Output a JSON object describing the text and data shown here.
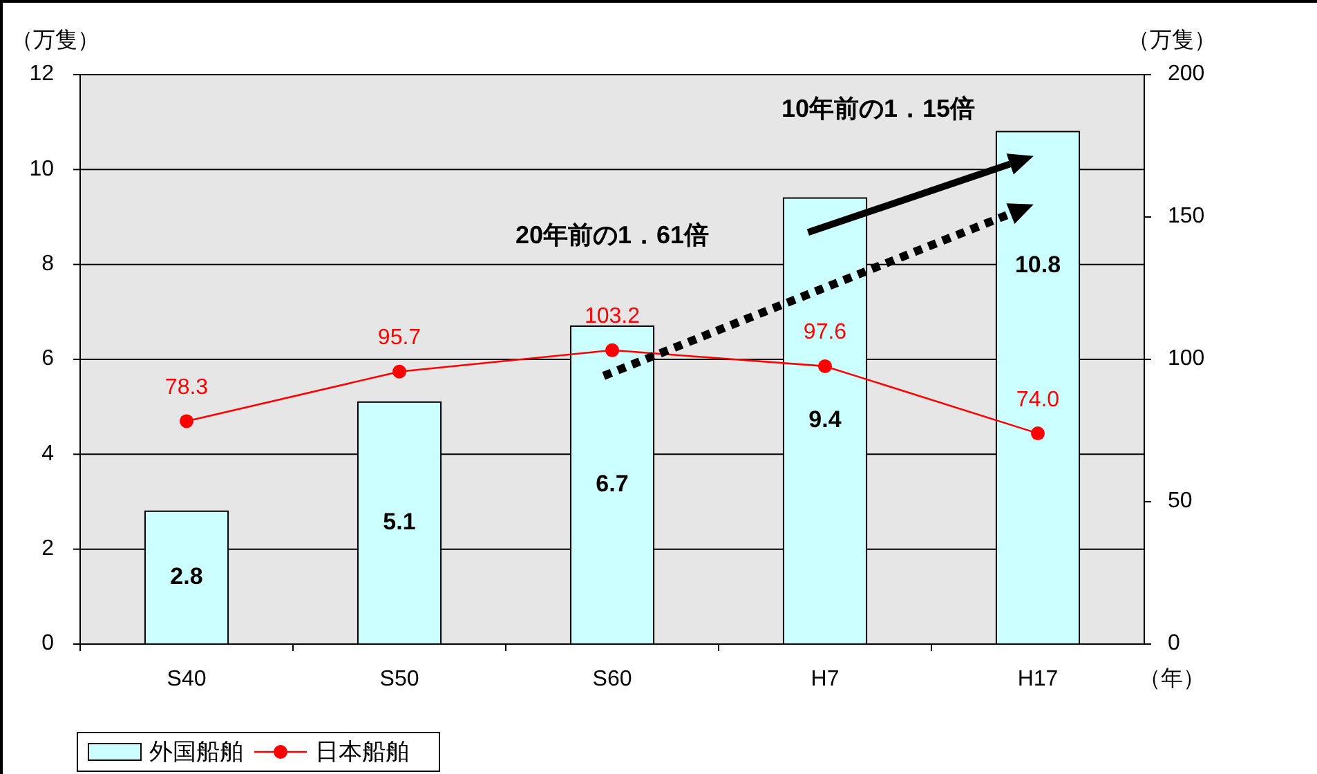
{
  "chart_data": {
    "type": "bar",
    "ylabel": "（万隻）",
    "y2label": "（万隻）",
    "xlabel": "（年）",
    "categories": [
      "S40",
      "S50",
      "S60",
      "H7",
      "H17"
    ],
    "series": [
      {
        "name": "外国船舶",
        "color": "#ccffff",
        "values": [
          2.8,
          5.1,
          6.7,
          9.4,
          10.8
        ],
        "value_labels": [
          "2.8",
          "5.1",
          "6.7",
          "9.4",
          "10.8"
        ]
      },
      {
        "name": "日本船舶",
        "type": "line",
        "axis": "y2",
        "color": "#ff0000",
        "marker": "circle",
        "values": [
          78.3,
          95.7,
          103.2,
          97.6,
          74.0
        ],
        "value_labels": [
          "78.3",
          "95.7",
          "103.2",
          "97.6",
          "74.0"
        ]
      }
    ],
    "ylim": [
      0,
      12
    ],
    "yticks": [
      0,
      2,
      4,
      6,
      8,
      10,
      12
    ],
    "y2lim": [
      0,
      200
    ],
    "y2ticks": [
      0,
      50,
      100,
      150,
      200
    ],
    "grid": "y",
    "legend": "bottom left",
    "annotations": [
      "10年前の1．15倍",
      "20年前の1．61倍"
    ]
  }
}
